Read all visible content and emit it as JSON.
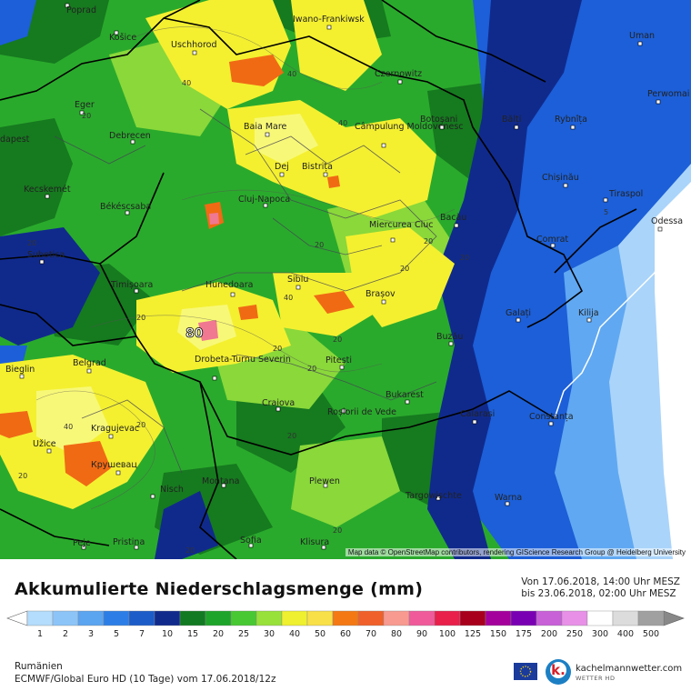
{
  "map": {
    "attribution": "Map data © OpenStreetMap contributors, rendering GIScience Research Group @ Heidelberg University",
    "colors": {
      "sea": "#ffffff",
      "bg_green": "#2aaa2c",
      "dark_green": "#167a1f",
      "light_green": "#8ad83a",
      "yellow": "#f4f030",
      "pale_yellow": "#f8f878",
      "orange": "#f06a14",
      "pink": "#f07890",
      "blue": "#1c5fd8",
      "navy": "#102a8c",
      "light_blue": "#60a8f2",
      "pale_blue": "#aad4fa"
    },
    "cities": [
      {
        "name": "Poprad"
      },
      {
        "name": "Košice"
      },
      {
        "name": "Uschhorod"
      },
      {
        "name": "Iwano-Frankiwsk"
      },
      {
        "name": "Czernowitz"
      },
      {
        "name": "Uman"
      },
      {
        "name": "Perwomai"
      },
      {
        "name": "Eger"
      },
      {
        "name": "Baia Mare"
      },
      {
        "name": "Câmpulung Moldovenesc"
      },
      {
        "name": "Botoșani"
      },
      {
        "name": "Bălți"
      },
      {
        "name": "Rybnîța"
      },
      {
        "name": "Debrecen"
      },
      {
        "name": "dapest"
      },
      {
        "name": "Dej"
      },
      {
        "name": "Bistrița"
      },
      {
        "name": "Chișinău"
      },
      {
        "name": "Kecskemét"
      },
      {
        "name": "Cluj-Napoca"
      },
      {
        "name": "Tiraspol"
      },
      {
        "name": "Békéscsaba"
      },
      {
        "name": "Bacău"
      },
      {
        "name": "Odessa"
      },
      {
        "name": "Miercurea Ciuc"
      },
      {
        "name": "Comrat"
      },
      {
        "name": "Subotica"
      },
      {
        "name": "Timișoara"
      },
      {
        "name": "Hunedoara"
      },
      {
        "name": "Sibiu"
      },
      {
        "name": "Brașov"
      },
      {
        "name": "Galați"
      },
      {
        "name": "Kilija"
      },
      {
        "name": "Buzău"
      },
      {
        "name": "Bieglin"
      },
      {
        "name": "Belgrad"
      },
      {
        "name": "Drobeta-Turnu Severin"
      },
      {
        "name": "Pitești"
      },
      {
        "name": "Bukarest"
      },
      {
        "name": "Craiova"
      },
      {
        "name": "Roșiorii de Vede"
      },
      {
        "name": "Calarasi"
      },
      {
        "name": "Constanța"
      },
      {
        "name": "Kragujevac"
      },
      {
        "name": "Užice"
      },
      {
        "name": "Крушевац"
      },
      {
        "name": "Nisch"
      },
      {
        "name": "Montana"
      },
      {
        "name": "Plewen"
      },
      {
        "name": "Targowischte"
      },
      {
        "name": "Warna"
      },
      {
        "name": "Sofia"
      },
      {
        "name": "Klisura"
      },
      {
        "name": "Peje"
      },
      {
        "name": "Pristina"
      }
    ],
    "contour_labels": [
      "40",
      "40",
      "40",
      "20",
      "20",
      "20",
      "20",
      "20",
      "20",
      "40",
      "20",
      "20",
      "20",
      "20",
      "40",
      "20",
      "20",
      "20",
      "20",
      "20",
      "5"
    ],
    "max_label": "80"
  },
  "footer": {
    "title": "Akkumulierte Niederschlagsmenge (mm)",
    "from_text": "Von 17.06.2018, 14:00 Uhr MESZ",
    "to_text": "bis 23.06.2018, 02:00 Uhr MESZ",
    "region": "Rumänien",
    "model": "ECMWF/Global Euro HD (10 Tage) vom 17.06.2018/12z",
    "brand_name": "kachelmannwetter.com",
    "brand_sub": "WETTER HD",
    "brand_letter": "k."
  },
  "legend": {
    "values": [
      "1",
      "2",
      "3",
      "5",
      "7",
      "10",
      "15",
      "20",
      "25",
      "30",
      "40",
      "50",
      "60",
      "70",
      "80",
      "90",
      "100",
      "125",
      "150",
      "175",
      "200",
      "250",
      "300",
      "400",
      "500"
    ],
    "colors": [
      "#b4dcfc",
      "#8cc4f8",
      "#5aa4f0",
      "#2c7ee6",
      "#1c5cc8",
      "#102a8c",
      "#127a22",
      "#1ea42a",
      "#48c832",
      "#98e03a",
      "#eef030",
      "#f8e048",
      "#f47814",
      "#f0602a",
      "#f89a90",
      "#f05a9a",
      "#e8204a",
      "#a8001c",
      "#a4009c",
      "#7a00b4",
      "#c860d8",
      "#e890e8",
      "#ffffff",
      "#dcdcdc",
      "#a0a0a0"
    ]
  }
}
